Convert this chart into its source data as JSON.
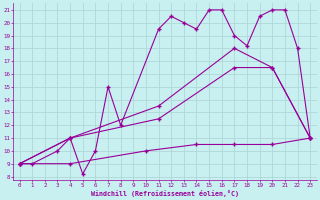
{
  "xlabel": "Windchill (Refroidissement éolien,°C)",
  "bg_color": "#c8f0f0",
  "line_color": "#990099",
  "grid_color": "#b0d8d8",
  "xlim": [
    -0.5,
    23.5
  ],
  "ylim": [
    7.7,
    21.5
  ],
  "xticks": [
    0,
    1,
    2,
    3,
    4,
    5,
    6,
    7,
    8,
    9,
    10,
    11,
    12,
    13,
    14,
    15,
    16,
    17,
    18,
    19,
    20,
    21,
    22,
    23
  ],
  "yticks": [
    8,
    9,
    10,
    11,
    12,
    13,
    14,
    15,
    16,
    17,
    18,
    19,
    20,
    21
  ],
  "line1_wiggly": {
    "x": [
      0,
      1,
      3,
      4,
      5,
      6,
      7,
      8,
      11,
      12,
      13,
      14,
      15,
      16,
      17,
      18,
      19,
      20,
      21,
      22,
      23
    ],
    "y": [
      9,
      9,
      10,
      11,
      8.2,
      10,
      15,
      12,
      19.5,
      20.5,
      20,
      19.5,
      21,
      21,
      19,
      18.2,
      20.5,
      21,
      21,
      18,
      11
    ]
  },
  "line2_upper": {
    "x": [
      0,
      4,
      11,
      17,
      20,
      23
    ],
    "y": [
      9,
      11,
      13.5,
      18,
      16.5,
      11
    ]
  },
  "line3_middle": {
    "x": [
      0,
      4,
      11,
      17,
      20,
      23
    ],
    "y": [
      9,
      11,
      12.5,
      16.5,
      16.5,
      11
    ]
  },
  "line4_lower": {
    "x": [
      0,
      4,
      10,
      14,
      17,
      20,
      23
    ],
    "y": [
      9,
      9,
      10,
      10.5,
      10.5,
      10.5,
      11
    ]
  }
}
